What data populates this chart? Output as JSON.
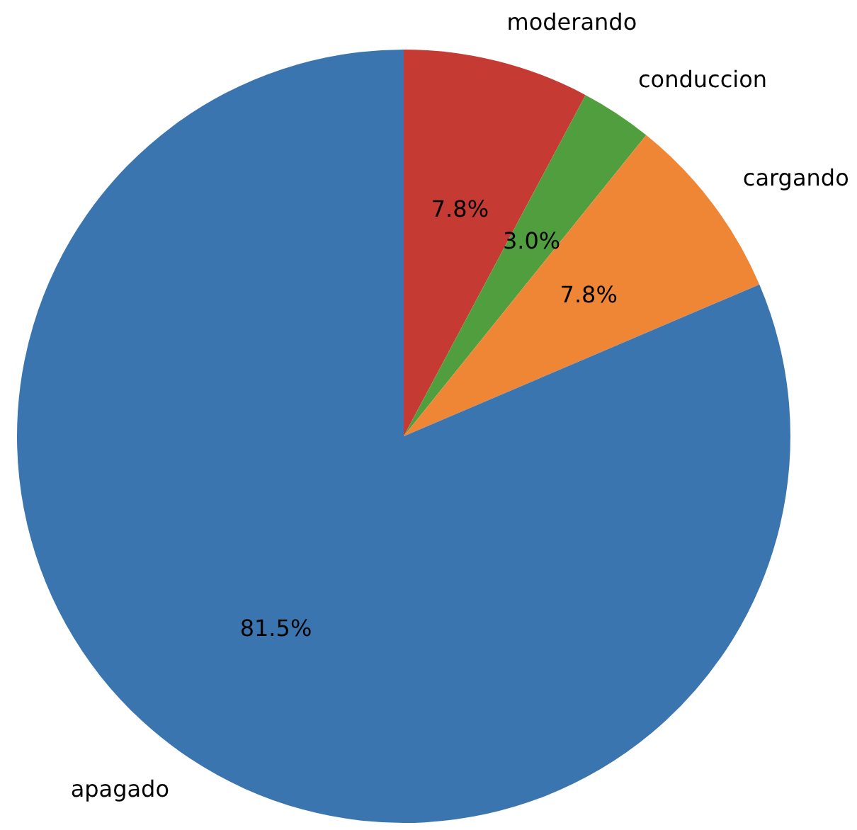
{
  "chart_data": {
    "type": "pie",
    "categories": [
      "moderando",
      "conduccion",
      "cargando",
      "apagado"
    ],
    "values": [
      7.8,
      3.0,
      7.8,
      81.5
    ],
    "value_labels": [
      "7.8%",
      "3.0%",
      "7.8%",
      "81.5%"
    ],
    "colors": [
      "#c53a32",
      "#519e3e",
      "#ef8636",
      "#3b75af"
    ],
    "legend": false
  }
}
